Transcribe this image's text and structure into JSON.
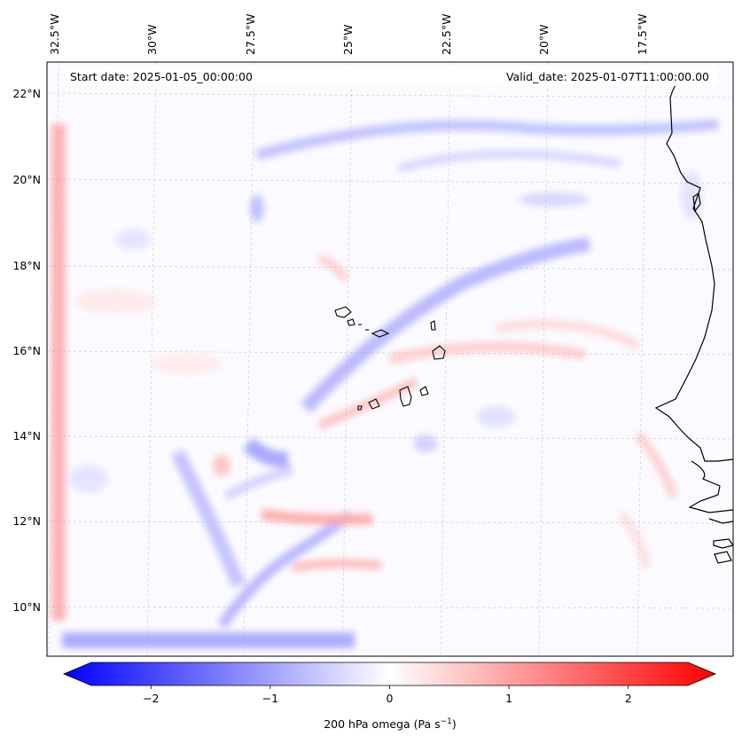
{
  "header": {
    "start_date": "Start date: 2025-01-05_00:00:00",
    "valid_date": "Valid_date: 2025-01-07T11:00:00.00"
  },
  "map": {
    "lon_labels": [
      "32.5°W",
      "30°W",
      "27.5°W",
      "25°W",
      "22.5°W",
      "20°W",
      "17.5°W"
    ],
    "lat_labels": [
      "22°N",
      "20°N",
      "18°N",
      "16°N",
      "14°N",
      "12°N",
      "10°N"
    ],
    "colors": {
      "negative": "#0000ff",
      "positive": "#ff0000",
      "neutral": "#ffffff",
      "coast": "#000000",
      "grid": "#b0b0b0"
    }
  },
  "colorbar": {
    "ticks": [
      "−2",
      "−1",
      "0",
      "1",
      "2"
    ],
    "tick_values": [
      -2,
      -1,
      0,
      1,
      2
    ],
    "range": [
      -2.5,
      2.5
    ],
    "label_main": "200 hPa omega (Pa s",
    "label_sup": "−1",
    "label_end": ")"
  }
}
